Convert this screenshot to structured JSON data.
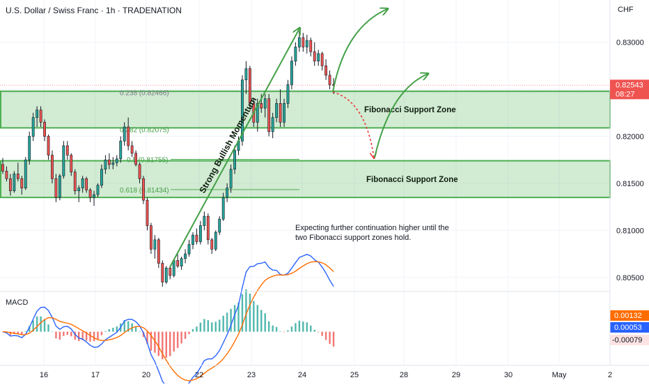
{
  "header": {
    "title": "U.S. Dollar / Swiss Franc · 1h · TRADENATION",
    "currency": "CHF"
  },
  "chart_data": {
    "type": "candlestick",
    "symbol": "USDCHF",
    "timeframe": "1h",
    "ylim": [
      0.8035,
      0.8345
    ],
    "x_ticks": [
      "16",
      "17",
      "20",
      "22",
      "23",
      "24",
      "25",
      "28",
      "29",
      "30",
      "May",
      "2"
    ],
    "y_ticks": [
      "0.83000",
      "0.82500",
      "0.82000",
      "0.81500",
      "0.81000",
      "0.80500"
    ],
    "current_price": {
      "price": "0.82543",
      "countdown": "08:27"
    },
    "fibonacci": [
      {
        "label": "0.238 (0.82466)",
        "price": 0.82466
      },
      {
        "label": "0.382 (0.82075)",
        "price": 0.82075
      },
      {
        "label": "0.5 (0.81755)",
        "price": 0.81755
      },
      {
        "label": "0.618 (0.81434)",
        "price": 0.81434
      }
    ],
    "support_zones": [
      {
        "label": "Fibonacci Support Zone",
        "from": 0.8209,
        "to": 0.8248
      },
      {
        "label": "Fibonacci Support Zone",
        "from": 0.8135,
        "to": 0.8174
      }
    ],
    "annotations": {
      "momentum": "Strong Bullish Momentum",
      "note_line1": "Expecting further continuation higher until the",
      "note_line2": "two Fibonacci support zones hold."
    },
    "candles": [
      [
        0.817,
        0.8177,
        0.816,
        0.8163
      ],
      [
        0.8163,
        0.8168,
        0.8152,
        0.8155
      ],
      [
        0.8155,
        0.816,
        0.8137,
        0.8142
      ],
      [
        0.8142,
        0.8163,
        0.814,
        0.816
      ],
      [
        0.816,
        0.8172,
        0.8152,
        0.8155
      ],
      [
        0.8155,
        0.8158,
        0.8138,
        0.8145
      ],
      [
        0.8145,
        0.8178,
        0.8143,
        0.8175
      ],
      [
        0.8175,
        0.8205,
        0.817,
        0.82
      ],
      [
        0.82,
        0.8225,
        0.8195,
        0.822
      ],
      [
        0.822,
        0.8232,
        0.821,
        0.8228
      ],
      [
        0.8228,
        0.8232,
        0.821,
        0.8215
      ],
      [
        0.8215,
        0.8218,
        0.8195,
        0.82
      ],
      [
        0.82,
        0.8202,
        0.8175,
        0.818
      ],
      [
        0.818,
        0.8185,
        0.815,
        0.8155
      ],
      [
        0.8155,
        0.816,
        0.813,
        0.8135
      ],
      [
        0.8135,
        0.816,
        0.8132,
        0.8158
      ],
      [
        0.8158,
        0.8195,
        0.8155,
        0.819
      ],
      [
        0.819,
        0.8195,
        0.8175,
        0.818
      ],
      [
        0.818,
        0.8182,
        0.8158,
        0.8162
      ],
      [
        0.8162,
        0.8165,
        0.8138,
        0.8142
      ],
      [
        0.8142,
        0.8148,
        0.813,
        0.8145
      ],
      [
        0.8145,
        0.8158,
        0.814,
        0.8155
      ],
      [
        0.8155,
        0.8157,
        0.814,
        0.8143
      ],
      [
        0.8143,
        0.8145,
        0.813,
        0.8135
      ],
      [
        0.8135,
        0.8142,
        0.8126,
        0.8138
      ],
      [
        0.8138,
        0.815,
        0.8135,
        0.8148
      ],
      [
        0.8148,
        0.817,
        0.8145,
        0.8165
      ],
      [
        0.8165,
        0.818,
        0.816,
        0.8175
      ],
      [
        0.8175,
        0.8182,
        0.8165,
        0.817
      ],
      [
        0.817,
        0.8178,
        0.8165,
        0.8172
      ],
      [
        0.8172,
        0.818,
        0.8168,
        0.8176
      ],
      [
        0.8176,
        0.82,
        0.8172,
        0.8195
      ],
      [
        0.8195,
        0.8215,
        0.819,
        0.821
      ],
      [
        0.821,
        0.822,
        0.8185,
        0.819
      ],
      [
        0.819,
        0.8195,
        0.8178,
        0.8182
      ],
      [
        0.8182,
        0.8185,
        0.8168,
        0.817
      ],
      [
        0.817,
        0.8172,
        0.815,
        0.8155
      ],
      [
        0.8155,
        0.8158,
        0.8128,
        0.8132
      ],
      [
        0.8132,
        0.8135,
        0.81,
        0.8105
      ],
      [
        0.8105,
        0.8108,
        0.8075,
        0.808
      ],
      [
        0.808,
        0.8095,
        0.807,
        0.809
      ],
      [
        0.809,
        0.8092,
        0.806,
        0.8065
      ],
      [
        0.8065,
        0.8068,
        0.804,
        0.8045
      ],
      [
        0.8045,
        0.8062,
        0.8043,
        0.806
      ],
      [
        0.806,
        0.8062,
        0.8048,
        0.8052
      ],
      [
        0.8052,
        0.807,
        0.805,
        0.8068
      ],
      [
        0.8068,
        0.8075,
        0.806,
        0.8062
      ],
      [
        0.8062,
        0.8072,
        0.8058,
        0.807
      ],
      [
        0.807,
        0.808,
        0.8065,
        0.8075
      ],
      [
        0.8075,
        0.809,
        0.8072,
        0.8085
      ],
      [
        0.8085,
        0.8098,
        0.808,
        0.8095
      ],
      [
        0.8095,
        0.8102,
        0.8085,
        0.8088
      ],
      [
        0.8088,
        0.811,
        0.8085,
        0.8105
      ],
      [
        0.8105,
        0.812,
        0.81,
        0.8115
      ],
      [
        0.8115,
        0.8118,
        0.8085,
        0.809
      ],
      [
        0.809,
        0.8092,
        0.8075,
        0.808
      ],
      [
        0.808,
        0.81,
        0.8078,
        0.8098
      ],
      [
        0.8098,
        0.8115,
        0.8095,
        0.8112
      ],
      [
        0.8112,
        0.814,
        0.811,
        0.8135
      ],
      [
        0.8135,
        0.815,
        0.813,
        0.8145
      ],
      [
        0.8145,
        0.817,
        0.814,
        0.8165
      ],
      [
        0.8165,
        0.819,
        0.816,
        0.8185
      ],
      [
        0.8185,
        0.82,
        0.818,
        0.8195
      ],
      [
        0.8195,
        0.8265,
        0.819,
        0.826
      ],
      [
        0.826,
        0.828,
        0.8245,
        0.8272
      ],
      [
        0.8272,
        0.8275,
        0.823,
        0.8235
      ],
      [
        0.8235,
        0.824,
        0.821,
        0.8215
      ],
      [
        0.8215,
        0.824,
        0.8205,
        0.8235
      ],
      [
        0.8235,
        0.8245,
        0.8225,
        0.823
      ],
      [
        0.823,
        0.8245,
        0.822,
        0.824
      ],
      [
        0.824,
        0.8245,
        0.82,
        0.8205
      ],
      [
        0.8205,
        0.8225,
        0.8198,
        0.822
      ],
      [
        0.822,
        0.824,
        0.8215,
        0.8235
      ],
      [
        0.8235,
        0.825,
        0.821,
        0.8215
      ],
      [
        0.8215,
        0.824,
        0.821,
        0.8235
      ],
      [
        0.8235,
        0.826,
        0.823,
        0.8255
      ],
      [
        0.8255,
        0.8285,
        0.825,
        0.828
      ],
      [
        0.828,
        0.83,
        0.8275,
        0.8295
      ],
      [
        0.8295,
        0.8312,
        0.829,
        0.8305
      ],
      [
        0.8305,
        0.831,
        0.829,
        0.8295
      ],
      [
        0.8295,
        0.8308,
        0.8288,
        0.8302
      ],
      [
        0.8302,
        0.8305,
        0.8285,
        0.829
      ],
      [
        0.829,
        0.83,
        0.8275,
        0.828
      ],
      [
        0.828,
        0.8292,
        0.8275,
        0.8288
      ],
      [
        0.8288,
        0.829,
        0.827,
        0.8275
      ],
      [
        0.8275,
        0.8282,
        0.826,
        0.8265
      ],
      [
        0.8265,
        0.827,
        0.825,
        0.8255
      ],
      [
        0.8255,
        0.8262,
        0.8245,
        0.8254
      ]
    ],
    "macd": {
      "ylim": [
        -0.0016,
        0.00175
      ],
      "labels": {
        "title": "MACD",
        "signal": "0.00132",
        "macd": "0.00053",
        "hist": "-0.00079"
      },
      "colors": {
        "macd": "#2962ff",
        "signal": "#ff6d00",
        "hist_pos": "#26a69a",
        "hist_neg": "#ef5350"
      }
    },
    "colors": {
      "bull": "#26a69a",
      "bear": "#ef5350",
      "zone": "#4caf50",
      "arrow": "#43a047",
      "dashed": "#e53935",
      "fib": "#4caf50"
    }
  }
}
